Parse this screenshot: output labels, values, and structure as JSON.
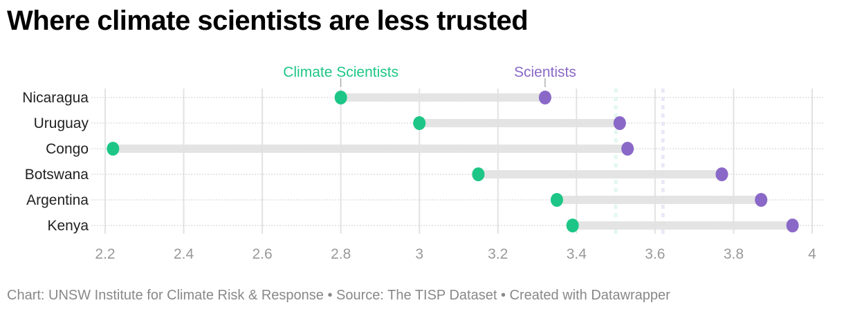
{
  "chart_data": {
    "type": "dot-range",
    "title": "Where climate scientists are less trusted",
    "footer": "Chart: UNSW Institute for Climate Risk & Response • Source: The TISP Dataset • Created with Datawrapper",
    "xlim": [
      2.2,
      4.0
    ],
    "xticks": [
      2.2,
      2.4,
      2.6,
      2.8,
      3.0,
      3.2,
      3.4,
      3.6,
      3.8,
      4.0
    ],
    "xtick_labels": [
      "2.2",
      "2.4",
      "2.6",
      "2.8",
      "3",
      "3.2",
      "3.4",
      "3.6",
      "3.8",
      "4"
    ],
    "grid": true,
    "categories": [
      "Nicaragua",
      "Uruguay",
      "Congo",
      "Botswana",
      "Argentina",
      "Kenya"
    ],
    "series": [
      {
        "name": "Climate Scientists",
        "color": "#1dc686",
        "values": [
          2.8,
          3.0,
          2.22,
          3.15,
          3.35,
          3.39
        ],
        "average": 3.5
      },
      {
        "name": "Scientists",
        "color": "#8a68c8",
        "values": [
          3.32,
          3.51,
          3.53,
          3.77,
          3.87,
          3.95
        ],
        "average": 3.62
      }
    ],
    "legend": "inline-labels-top"
  }
}
